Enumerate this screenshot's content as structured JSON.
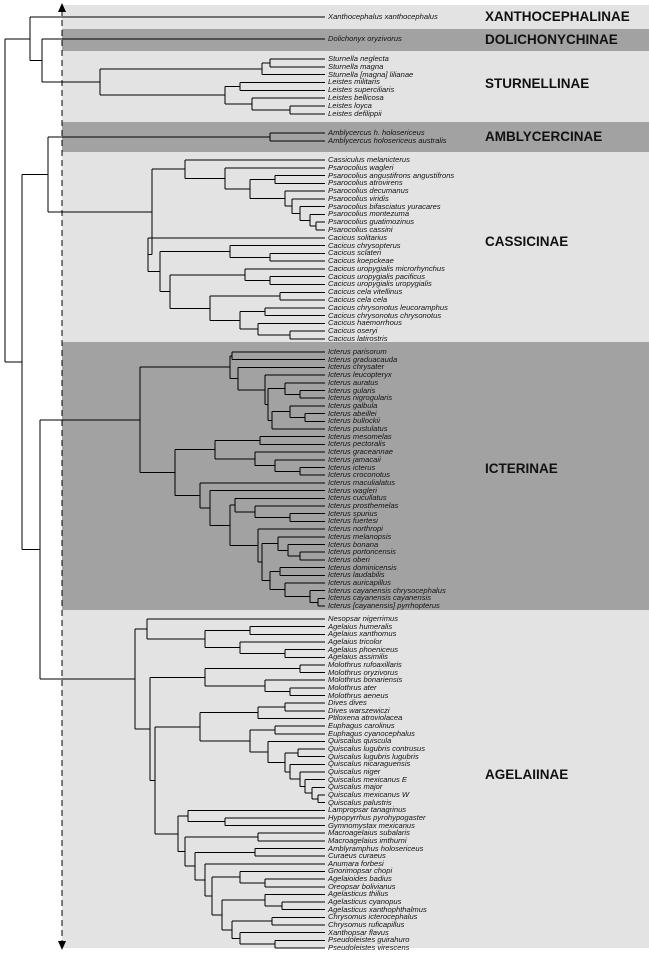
{
  "subfamilies": [
    {
      "name": "XANTHOCEPHALINAE",
      "shade": "light",
      "taxa": [
        "Xanthocephalus xanthocephalus"
      ]
    },
    {
      "name": "DOLICHONYCHINAE",
      "shade": "dark",
      "taxa": [
        "Dolichonyx oryzivorus"
      ]
    },
    {
      "name": "STURNELLINAE",
      "shade": "light",
      "taxa": [
        "Sturnella neglecta",
        "Sturnella magna",
        "Sturnella [magna] lilianae",
        "Leistes militaris",
        "Leistes superciliaris",
        "Leistes bellicosa",
        "Leistes loyca",
        "Leistes defilippii"
      ]
    },
    {
      "name": "AMBLYCERCINAE",
      "shade": "dark",
      "taxa": [
        "Amblycercus h. holosericeus",
        "Amblycercus holosericeus australis"
      ]
    },
    {
      "name": "CASSICINAE",
      "shade": "light",
      "taxa": [
        "Cassiculus melanicterus",
        "Psarocolius wagleri",
        "Psarocolius angustifrons angustifrons",
        "Psarocolius atrovirens",
        "Psarocolius decumanus",
        "Psarocolius viridis",
        "Psarocolius bifasciatus yuracares",
        "Psarocolius montezuma",
        "Psarocolius guatimozinus",
        "Psarocolius cassini",
        "Cacicus solitarius",
        "Cacicus chrysopterus",
        "Cacicus sclateri",
        "Cacicus koepckeae",
        "Cacicus uropygialis microrhynchus",
        "Cacicus uropygialis pacificus",
        "Cacicus uropygialis uropygialis",
        "Cacicus cela vitellinus",
        "Cacicus cela cela",
        "Cacicus chrysonotus leucoramphus",
        "Cacicus chrysonotus chrysonotus",
        "Cacicus haemorrhous",
        "Cacicus oseryi",
        "Cacicus latirostris"
      ]
    },
    {
      "name": "ICTERINAE",
      "shade": "dark",
      "taxa": [
        "Icterus parisorum",
        "Icterus graduacauda",
        "Icterus chrysater",
        "Icterus leucopteryx",
        "Icterus auratus",
        "Icterus gularis",
        "Icterus nigrogularis",
        "Icterus galbula",
        "Icterus abeillei",
        "Icterus bullockii",
        "Icterus pustulatus",
        "Icterus mesomelas",
        "Icterus pectoralis",
        "Icterus graceannae",
        "Icterus jamacaii",
        "Icterus icterus",
        "Icterus croconotus",
        "Icterus maculialatus",
        "Icterus wagleri",
        "Icterus cucullatus",
        "Icterus prosthemelas",
        "Icterus spurius",
        "Icterus fuertesi",
        "Icterus northropi",
        "Icterus melanopsis",
        "Icterus bonana",
        "Icterus portoricensis",
        "Icterus oberi",
        "Icterus dominicensis",
        "Icterus laudabilis",
        "Icterus auricapillus",
        "Icterus cayanensis chrysocephalus",
        "Icterus cayanensis cayanensis",
        "Icterus [cayanensis] pyrrhopterus"
      ]
    },
    {
      "name": "AGELAIINAE",
      "shade": "light",
      "taxa": [
        "Nesopsar nigerrimus",
        "Agelaius humeralis",
        "Agelaius xanthomus",
        "Agelaius tricolor",
        "Agelaius phoeniceus",
        "Agelaius assimilis",
        "Molothrus rufoaxillaris",
        "Molothrus oryzivorus",
        "Molothrus bonariensis",
        "Molothrus ater",
        "Molothrus aeneus",
        "Dives dives",
        "Dives warszewiczi",
        "Ptiloxena atroviolacea",
        "Euphagus carolinus",
        "Euphagus cyanocephalus",
        "Quiscalus quiscula",
        "Quiscalus lugubris contrusus",
        "Quiscalus lugubris lugubris",
        "Quiscalus nicaraguensis",
        "Quiscalus niger",
        "Quiscalus mexicanus E",
        "Quiscalus major",
        "Quiscalus mexicanus W",
        "Quiscalus palustris",
        "Lampropsar tanagrinus",
        "Hypopyrrhus pyrohypogaster",
        "Gymnomystax mexicanus",
        "Macroagelaius subalaris",
        "Macroagelaius imthurni",
        "Amblyramphus holosericeus",
        "Curaeus curaeus",
        "Anumara forbesi",
        "Gnorimopsar chopi",
        "Agelaioides badius",
        "Oreopsar bolivianus",
        "Agelasticus thilius",
        "Agelasticus cyanopus",
        "Agelasticus xanthophthalmus",
        "Chrysomus icterocephalus",
        "Chrysomus ruficapillus",
        "Xanthopsar flavus",
        "Pseudoleistes guirahuro",
        "Pseudoleistes virescens"
      ]
    }
  ]
}
